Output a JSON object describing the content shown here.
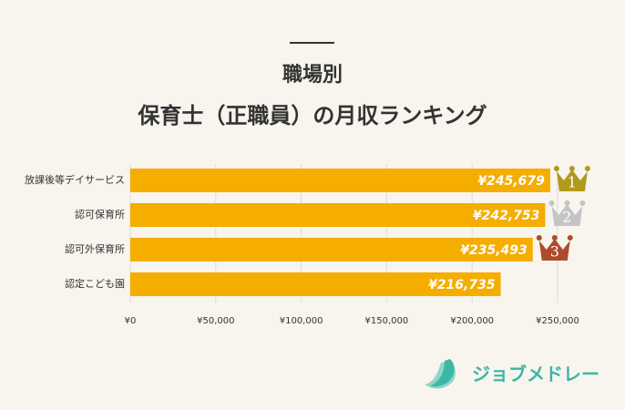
{
  "chart_data": {
    "type": "bar",
    "orientation": "horizontal",
    "title": [
      "職場別",
      "保育士（正職員）の月収ランキング"
    ],
    "categories": [
      "放課後等デイサービス",
      "認可保育所",
      "認可外保育所",
      "認定こども園"
    ],
    "values": [
      245679,
      242753,
      235493,
      216735
    ],
    "value_labels": [
      "¥245,679",
      "¥242,753",
      "¥235,493",
      "¥216,735"
    ],
    "color": "#f5ad00",
    "ranks": [
      "1",
      "2",
      "3"
    ],
    "rank_colors": [
      "#b09a1e",
      "#c4c4c4",
      "#b04a2c"
    ],
    "xlim": [
      0,
      250000
    ],
    "xticks": [
      {
        "value": 0,
        "label": "¥0"
      },
      {
        "value": 50000,
        "label": "¥50,000"
      },
      {
        "value": 100000,
        "label": "¥100,000"
      },
      {
        "value": 150000,
        "label": "¥150,000"
      },
      {
        "value": 200000,
        "label": "¥200,000"
      },
      {
        "value": 250000,
        "label": "¥250,000"
      }
    ],
    "grid": true
  },
  "logo": {
    "text": "ジョブメドレー"
  }
}
